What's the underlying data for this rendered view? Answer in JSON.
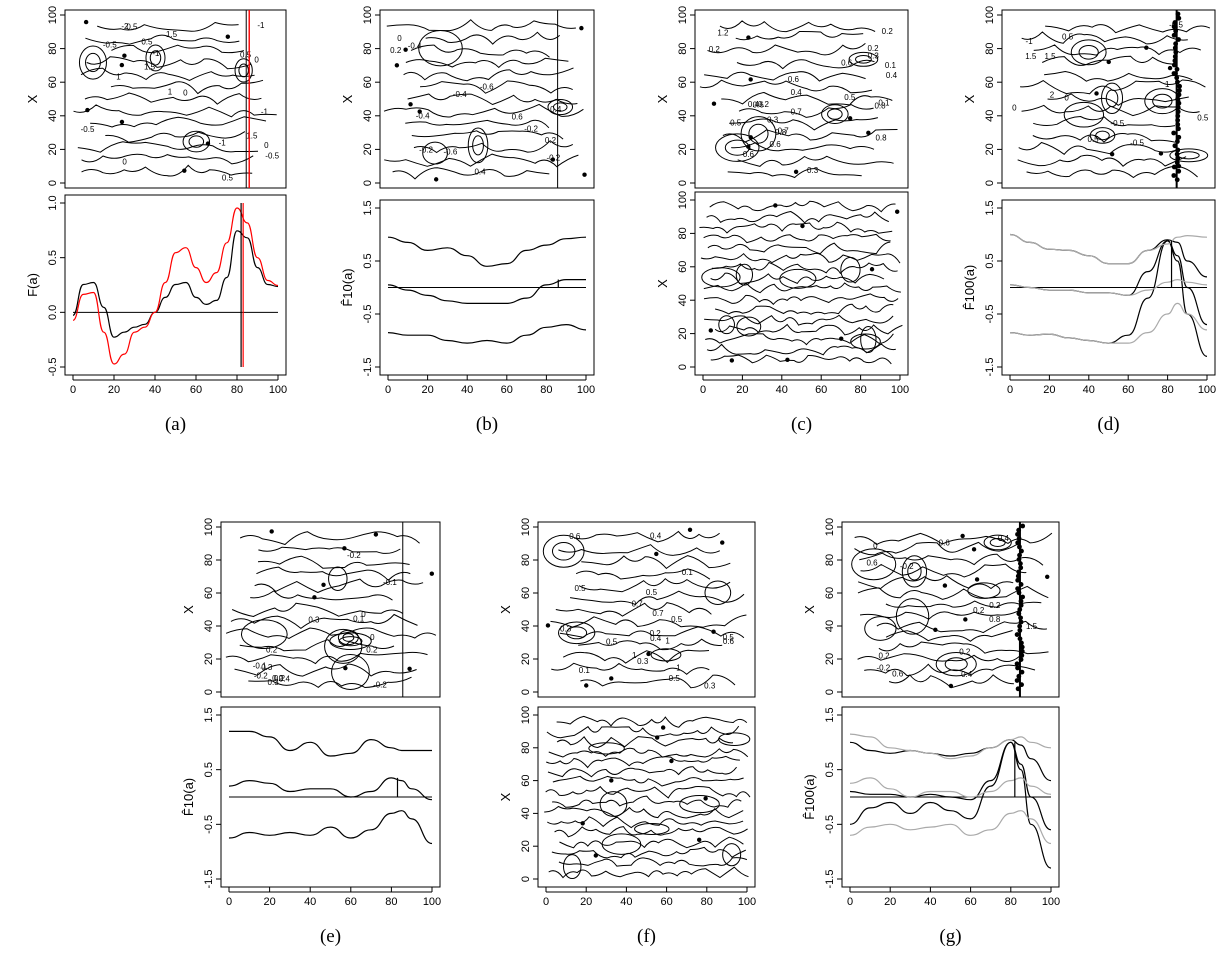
{
  "figure": {
    "panels": [
      {
        "id": "a",
        "caption": "(a)",
        "top_ylabel": "X",
        "bottom_ylabel": "F(a)",
        "bottom_yticks": [
          "1.0",
          "0.5",
          "0.0",
          "-0.5"
        ],
        "contour_labels": [
          "1.5",
          "-0.5",
          "-1",
          "0",
          "0.5",
          "1",
          "1.5",
          "0",
          "-2",
          "0.5",
          "-1",
          "-0.5",
          "1.5",
          "-0.5",
          "0.5",
          "-1",
          "0",
          "-1",
          "0",
          "0.5",
          "1"
        ]
      },
      {
        "id": "b",
        "caption": "(b)",
        "top_ylabel": "X",
        "bottom_ylabel": "F̂10(a)",
        "bottom_yticks": [
          "1.5",
          "0.5",
          "-0.5",
          "-1.5"
        ],
        "contour_labels": [
          "-0.2",
          "0.4",
          "0.2",
          "-0.2",
          "-0.6",
          "-0.4",
          "-0.2",
          "-0.4",
          "-0.6",
          "-0.4",
          "0",
          "0.2",
          "0.4",
          "0.6"
        ]
      },
      {
        "id": "c",
        "caption": "(c)",
        "top_ylabel": "X",
        "bottom_ylabel": "X",
        "bottom_yticks": [
          "100",
          "80",
          "60",
          "40",
          "20",
          "0"
        ],
        "contour_labels": [
          "0.8",
          "1",
          "0.2",
          "0.8",
          "1.2",
          "0.6",
          "0.2",
          "0.4",
          "0.6",
          "0.4",
          "0.6",
          "0.8",
          "0.5",
          "0.6",
          "0.7",
          "0.1",
          "0.4",
          "0.3",
          "0.2",
          "0.5",
          "0.3",
          "0.2",
          "0.6",
          "0.7",
          "0.3",
          "0.1"
        ]
      },
      {
        "id": "d",
        "caption": "(d)",
        "top_ylabel": "X",
        "bottom_ylabel": "F̂100(a)",
        "bottom_yticks": [
          "1.5",
          "0.5",
          "-0.5",
          "-1.5"
        ],
        "contour_labels": [
          "-1",
          "-0.5",
          "0.5",
          "0",
          "1.5",
          "2",
          "1",
          "1.5",
          "-0.5",
          "-0.5",
          "0.5",
          "0",
          "0.5"
        ]
      },
      {
        "id": "e",
        "caption": "(e)",
        "top_ylabel": "X",
        "bottom_ylabel": "F̂10(a)",
        "bottom_yticks": [
          "1.5",
          "0.5",
          "-0.5",
          "-1.5"
        ],
        "contour_labels": [
          "0",
          "-0.2",
          "0",
          "-0.2",
          "0.3",
          "0.2",
          "-0.1",
          "-0.1",
          "0.2",
          "0.3",
          "-0.2",
          "0.1",
          "0.3",
          "0.2",
          "0.4",
          "0.2"
        ]
      },
      {
        "id": "f",
        "caption": "(f)",
        "top_ylabel": "X",
        "bottom_ylabel": "X",
        "bottom_yticks": [
          "100",
          "80",
          "60",
          "40",
          "20",
          "0"
        ],
        "contour_labels": [
          "1",
          "0.5",
          "1",
          "0.5",
          "0.5",
          "1",
          "0.5",
          "0.4",
          "0.3",
          "0.1",
          "0.2",
          "0.3",
          "0.6",
          "0.5",
          "0.4",
          "0.6",
          "0.1",
          "0.7",
          "0.5",
          "0.3",
          "0.7"
        ]
      },
      {
        "id": "g",
        "caption": "(g)",
        "top_ylabel": "X",
        "bottom_ylabel": "F̂100(a)",
        "bottom_yticks": [
          "1.5",
          "0.5",
          "-0.5",
          "-1.5"
        ],
        "contour_labels": [
          "0.4",
          "0.8",
          "0.6",
          "0.2",
          "-0.2",
          "0.6",
          "1.5",
          "0",
          "0.2",
          "-0.2",
          "0.2",
          "0.6",
          "0.4",
          "0.2"
        ]
      }
    ],
    "top_yticks": [
      "100",
      "80",
      "60",
      "40",
      "20",
      "0"
    ],
    "xticks": [
      "0",
      "20",
      "40",
      "60",
      "80",
      "100"
    ]
  },
  "chart_data": [
    {
      "type": "line",
      "panel": "a",
      "xlim": [
        0,
        100
      ],
      "ylim": [
        -0.55,
        1.1
      ],
      "hline": 0,
      "x": [
        0,
        5,
        10,
        15,
        20,
        25,
        30,
        35,
        40,
        45,
        50,
        55,
        60,
        65,
        70,
        75,
        80,
        85,
        90,
        95,
        100
      ],
      "series": [
        {
          "values": [
            -0.03,
            0.28,
            0.3,
            0.05,
            -0.25,
            -0.2,
            -0.15,
            -0.12,
            0.0,
            0.15,
            0.28,
            0.3,
            0.15,
            0.08,
            0.12,
            0.35,
            0.82,
            0.75,
            0.45,
            0.28,
            0.26
          ],
          "color": "#000000"
        },
        {
          "values": [
            -0.08,
            0.18,
            0.2,
            -0.2,
            -0.52,
            -0.42,
            -0.2,
            -0.15,
            0.0,
            0.3,
            0.6,
            0.65,
            0.45,
            0.3,
            0.4,
            0.7,
            1.05,
            0.9,
            0.55,
            0.32,
            0.27
          ],
          "color": "#ff0000"
        }
      ],
      "vlines": [
        {
          "x": 82,
          "color": "#000000"
        },
        {
          "x": 83,
          "color": "#ff0000"
        }
      ]
    },
    {
      "type": "line",
      "panel": "b",
      "xlim": [
        0,
        100
      ],
      "ylim": [
        -1.5,
        1.5
      ],
      "hline": 0,
      "x": [
        0,
        10,
        20,
        30,
        40,
        50,
        60,
        70,
        80,
        90,
        100
      ],
      "series": [
        {
          "values": [
            0.95,
            0.85,
            0.7,
            0.75,
            0.6,
            0.4,
            0.45,
            0.7,
            0.8,
            0.92,
            0.95
          ]
        },
        {
          "values": [
            0.05,
            -0.05,
            -0.15,
            -0.25,
            -0.3,
            -0.3,
            -0.3,
            -0.2,
            0.05,
            0.15,
            0.15
          ]
        },
        {
          "values": [
            -0.85,
            -0.9,
            -0.9,
            -1.0,
            -1.05,
            -1.0,
            -1.05,
            -0.9,
            -0.75,
            -0.7,
            -0.8
          ]
        }
      ],
      "vlines": [
        {
          "x": 86,
          "y0": 0,
          "y1": 0.15
        }
      ]
    },
    {
      "type": "line",
      "panel": "d",
      "xlim": [
        0,
        100
      ],
      "ylim": [
        -1.5,
        1.5
      ],
      "hline": 0,
      "x": [
        0,
        10,
        20,
        30,
        40,
        50,
        60,
        70,
        80,
        85,
        90,
        100
      ],
      "series": [
        {
          "values": [
            1.0,
            0.85,
            0.72,
            0.7,
            0.6,
            0.45,
            0.45,
            0.7,
            0.9,
            0.85,
            0.5,
            0.2
          ],
          "color": "#000000"
        },
        {
          "values": [
            0.05,
            0.0,
            -0.05,
            -0.05,
            -0.1,
            -0.1,
            -0.15,
            0.3,
            0.88,
            0.6,
            0.0,
            -0.7
          ],
          "color": "#000000"
        },
        {
          "values": [
            -0.85,
            -0.9,
            -0.88,
            -0.95,
            -1.0,
            -1.05,
            -0.9,
            -0.2,
            0.88,
            0.5,
            -0.5,
            -1.3
          ],
          "color": "#000000"
        },
        {
          "values": [
            1.0,
            0.85,
            0.72,
            0.7,
            0.6,
            0.45,
            0.45,
            0.7,
            0.82,
            0.95,
            0.98,
            0.95
          ],
          "color": "#aaaaaa"
        },
        {
          "values": [
            0.05,
            0.0,
            -0.05,
            -0.05,
            -0.1,
            -0.1,
            -0.15,
            -0.05,
            0.1,
            0.15,
            0.1,
            0.05
          ],
          "color": "#aaaaaa"
        },
        {
          "values": [
            -0.85,
            -0.9,
            -0.88,
            -0.95,
            -1.0,
            -1.05,
            -1.05,
            -0.85,
            -0.5,
            -0.3,
            -0.5,
            -0.8
          ],
          "color": "#aaaaaa"
        }
      ],
      "vlines": [
        {
          "x": 82,
          "y0": 0,
          "y1": 0.88
        }
      ]
    },
    {
      "type": "line",
      "panel": "e",
      "xlim": [
        0,
        100
      ],
      "ylim": [
        -1.5,
        1.5
      ],
      "hline": 0,
      "x": [
        0,
        10,
        20,
        30,
        40,
        50,
        60,
        70,
        80,
        85,
        90,
        100
      ],
      "series": [
        {
          "values": [
            1.2,
            1.2,
            1.1,
            0.85,
            1.0,
            0.75,
            0.8,
            1.05,
            0.9,
            0.85,
            0.85,
            0.85
          ]
        },
        {
          "values": [
            0.2,
            0.3,
            0.25,
            0.1,
            0.15,
            0.15,
            0.0,
            0.1,
            0.35,
            0.3,
            0.15,
            -0.05
          ]
        },
        {
          "values": [
            -0.75,
            -0.65,
            -0.7,
            -0.65,
            -0.7,
            -0.55,
            -0.75,
            -0.6,
            -0.3,
            -0.25,
            -0.4,
            -0.85
          ]
        }
      ],
      "vlines": [
        {
          "x": 83,
          "y0": 0,
          "y1": 0.35
        }
      ]
    },
    {
      "type": "line",
      "panel": "g",
      "xlim": [
        0,
        100
      ],
      "ylim": [
        -1.5,
        1.5
      ],
      "hline": 0,
      "x": [
        0,
        10,
        20,
        30,
        40,
        50,
        60,
        70,
        80,
        85,
        90,
        100
      ],
      "series": [
        {
          "values": [
            1.0,
            0.85,
            0.8,
            0.85,
            0.8,
            0.75,
            0.8,
            0.9,
            1.05,
            0.95,
            0.7,
            0.3
          ],
          "color": "#000000"
        },
        {
          "values": [
            0.1,
            0.05,
            0.05,
            0.0,
            0.05,
            0.0,
            -0.05,
            0.3,
            1.0,
            0.6,
            0.0,
            -0.6
          ],
          "color": "#000000"
        },
        {
          "values": [
            -0.5,
            -0.2,
            -0.1,
            -0.3,
            -0.1,
            -0.25,
            -0.4,
            0.2,
            1.0,
            0.5,
            -0.5,
            -1.3
          ],
          "color": "#000000"
        },
        {
          "values": [
            1.15,
            1.1,
            0.9,
            0.85,
            0.8,
            0.7,
            0.75,
            0.9,
            1.05,
            1.1,
            1.0,
            0.9
          ],
          "color": "#aaaaaa"
        },
        {
          "values": [
            0.25,
            0.35,
            0.15,
            0.0,
            0.1,
            0.1,
            0.0,
            0.1,
            0.3,
            0.35,
            0.2,
            0.05
          ],
          "color": "#aaaaaa"
        },
        {
          "values": [
            -0.7,
            -0.55,
            -0.5,
            -0.6,
            -0.55,
            -0.5,
            -0.7,
            -0.6,
            -0.3,
            -0.25,
            -0.4,
            -0.85
          ],
          "color": "#aaaaaa"
        }
      ],
      "vlines": [
        {
          "x": 82,
          "y0": 0,
          "y1": 1.0
        }
      ]
    }
  ]
}
